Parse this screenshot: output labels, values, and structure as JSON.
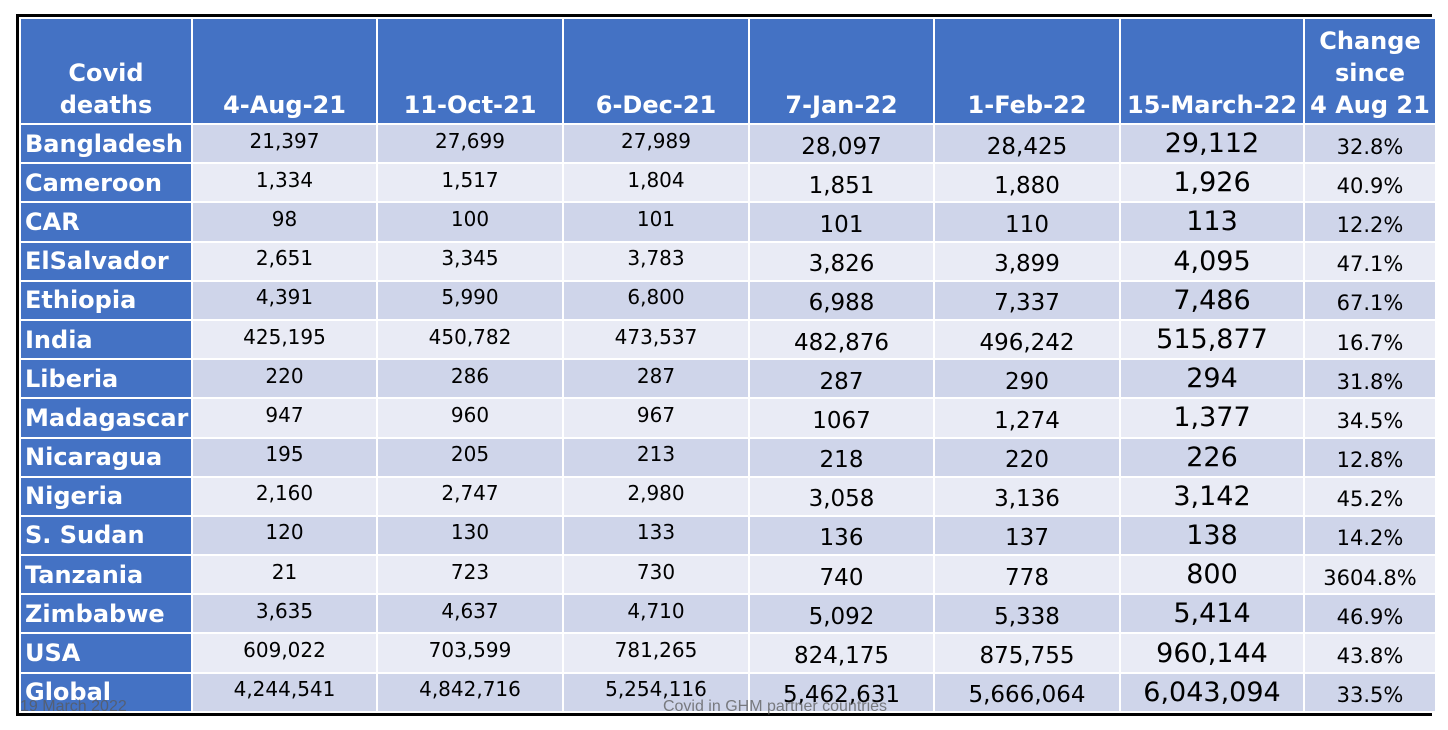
{
  "table": {
    "header": [
      "Covid\ndeaths",
      "4-Aug-21",
      "11-Oct-21",
      "6-Dec-21",
      "7-Jan-22",
      "1-Feb-22",
      "15-March-22",
      "Change\nsince\n4 Aug 21"
    ],
    "rows": [
      [
        "Bangladesh",
        "21,397",
        "27,699",
        "27,989",
        "28,097",
        "28,425",
        "29,112",
        "32.8%"
      ],
      [
        "Cameroon",
        "1,334",
        "1,517",
        "1,804",
        "1,851",
        "1,880",
        "1,926",
        "40.9%"
      ],
      [
        "CAR",
        "98",
        "100",
        "101",
        "101",
        "110",
        "113",
        "12.2%"
      ],
      [
        "ElSalvador",
        "2,651",
        "3,345",
        "3,783",
        "3,826",
        "3,899",
        "4,095",
        "47.1%"
      ],
      [
        "Ethiopia",
        "4,391",
        "5,990",
        "6,800",
        "6,988",
        "7,337",
        "7,486",
        "67.1%"
      ],
      [
        "India",
        "425,195",
        "450,782",
        "473,537",
        "482,876",
        "496,242",
        "515,877",
        "16.7%"
      ],
      [
        "Liberia",
        "220",
        "286",
        "287",
        "287",
        "290",
        "294",
        "31.8%"
      ],
      [
        "Madagascar",
        "947",
        "960",
        "967",
        "1067",
        "1,274",
        "1,377",
        "34.5%"
      ],
      [
        "Nicaragua",
        "195",
        "205",
        "213",
        "218",
        "220",
        "226",
        "12.8%"
      ],
      [
        "Nigeria",
        "2,160",
        "2,747",
        "2,980",
        "3,058",
        "3,136",
        "3,142",
        "45.2%"
      ],
      [
        "S. Sudan",
        "120",
        "130",
        "133",
        "136",
        "137",
        "138",
        "14.2%"
      ],
      [
        "Tanzania",
        "21",
        "723",
        "730",
        "740",
        "778",
        "800",
        "3604.8%"
      ],
      [
        "Zimbabwe",
        "3,635",
        "4,637",
        "4,710",
        "5,092",
        "5,338",
        "5,414",
        "46.9%"
      ],
      [
        "USA",
        "609,022",
        "703,599",
        "781,265",
        "824,175",
        "875,755",
        "960,144",
        "43.8%"
      ],
      [
        "Global",
        "4,244,541",
        "4,842,716",
        "5,254,116",
        "5,462,631",
        "5,666,064",
        "6,043,094",
        "33.5%"
      ]
    ]
  },
  "footer": {
    "date": "19 March 2022",
    "caption": "Covid in GHM partner countries"
  }
}
